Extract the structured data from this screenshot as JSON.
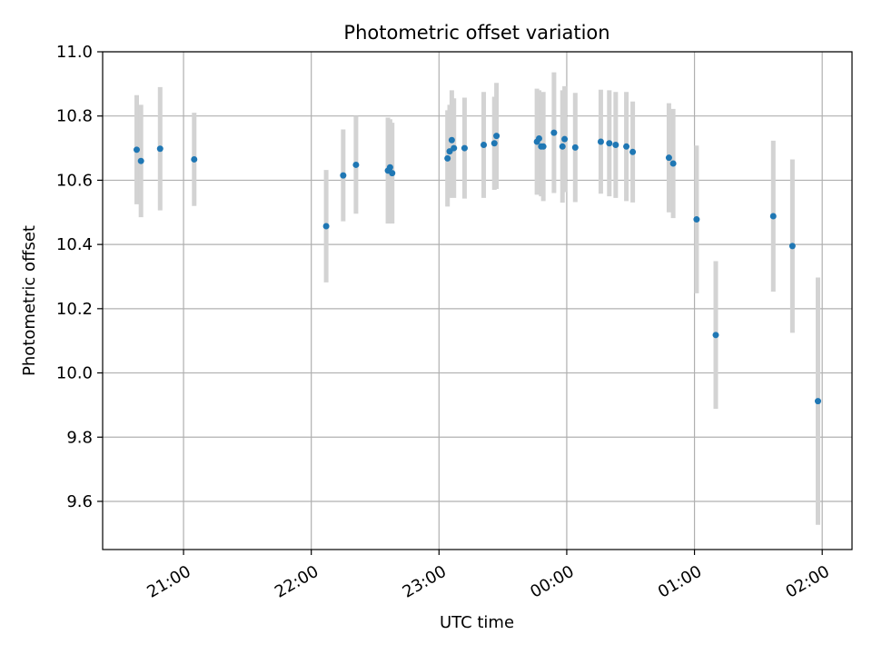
{
  "chart_data": {
    "type": "scatter",
    "title": "Photometric offset variation",
    "xlabel": "UTC time",
    "ylabel": "Photometric offset",
    "x_ticks": [
      "21:00",
      "22:00",
      "23:00",
      "00:00",
      "01:00",
      "02:00"
    ],
    "y_ticks": [
      "9.6",
      "9.8",
      "10.0",
      "10.2",
      "10.4",
      "10.6",
      "10.8",
      "11.0"
    ],
    "ylim": [
      9.45,
      11.0
    ],
    "xlim": [
      "20:22",
      "02:14"
    ],
    "grid": true,
    "point_color": "#1f77b4",
    "errorbar_color": "#d3d3d3",
    "series": [
      {
        "points": [
          {
            "x": "20:38",
            "y": 10.695,
            "err": 0.17
          },
          {
            "x": "20:40",
            "y": 10.66,
            "err": 0.175
          },
          {
            "x": "20:49",
            "y": 10.698,
            "err": 0.192
          },
          {
            "x": "21:05",
            "y": 10.665,
            "err": 0.145
          },
          {
            "x": "22:07",
            "y": 10.457,
            "err": 0.175
          },
          {
            "x": "22:15",
            "y": 10.615,
            "err": 0.143
          },
          {
            "x": "22:21",
            "y": 10.648,
            "err": 0.152
          },
          {
            "x": "22:36",
            "y": 10.63,
            "err": 0.165
          },
          {
            "x": "22:37",
            "y": 10.64,
            "err": 0.15
          },
          {
            "x": "22:38",
            "y": 10.622,
            "err": 0.157
          },
          {
            "x": "23:04",
            "y": 10.668,
            "err": 0.15
          },
          {
            "x": "23:05",
            "y": 10.69,
            "err": 0.145
          },
          {
            "x": "23:06",
            "y": 10.725,
            "err": 0.155
          },
          {
            "x": "23:07",
            "y": 10.7,
            "err": 0.155
          },
          {
            "x": "23:12",
            "y": 10.7,
            "err": 0.157
          },
          {
            "x": "23:21",
            "y": 10.71,
            "err": 0.165
          },
          {
            "x": "23:26",
            "y": 10.715,
            "err": 0.145
          },
          {
            "x": "23:27",
            "y": 10.738,
            "err": 0.165
          },
          {
            "x": "23:46",
            "y": 10.72,
            "err": 0.165
          },
          {
            "x": "23:47",
            "y": 10.73,
            "err": 0.15
          },
          {
            "x": "23:48",
            "y": 10.705,
            "err": 0.155
          },
          {
            "x": "23:49",
            "y": 10.705,
            "err": 0.17
          },
          {
            "x": "23:54",
            "y": 10.748,
            "err": 0.188
          },
          {
            "x": "23:58",
            "y": 10.705,
            "err": 0.175
          },
          {
            "x": "23:59",
            "y": 10.728,
            "err": 0.165
          },
          {
            "x": "00:04",
            "y": 10.702,
            "err": 0.17
          },
          {
            "x": "00:16",
            "y": 10.72,
            "err": 0.162
          },
          {
            "x": "00:20",
            "y": 10.715,
            "err": 0.165
          },
          {
            "x": "00:23",
            "y": 10.71,
            "err": 0.165
          },
          {
            "x": "00:28",
            "y": 10.705,
            "err": 0.17
          },
          {
            "x": "00:31",
            "y": 10.688,
            "err": 0.157
          },
          {
            "x": "00:48",
            "y": 10.67,
            "err": 0.17
          },
          {
            "x": "00:50",
            "y": 10.652,
            "err": 0.17
          },
          {
            "x": "01:01",
            "y": 10.478,
            "err": 0.23
          },
          {
            "x": "01:10",
            "y": 10.118,
            "err": 0.23
          },
          {
            "x": "01:37",
            "y": 10.488,
            "err": 0.235
          },
          {
            "x": "01:46",
            "y": 10.395,
            "err": 0.27
          },
          {
            "x": "01:58",
            "y": 9.912,
            "err": 0.385
          }
        ]
      }
    ]
  }
}
